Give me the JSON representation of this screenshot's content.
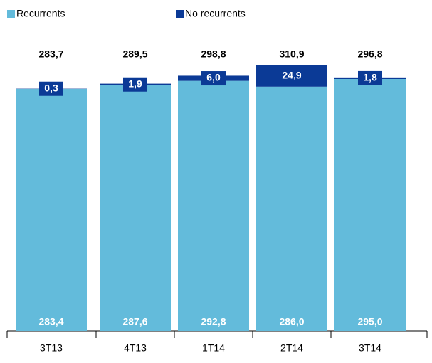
{
  "chart_data": {
    "type": "stacked_bar",
    "categories": [
      "3T13",
      "4T13",
      "1T14",
      "2T14",
      "3T14"
    ],
    "series": [
      {
        "name": "Recurrents",
        "color": "#63bbdb",
        "values": [
          283.4,
          287.6,
          292.8,
          286.0,
          295.0
        ],
        "value_labels": [
          "283,4",
          "287,6",
          "292,8",
          "286,0",
          "295,0"
        ]
      },
      {
        "name": "No recurrents",
        "color": "#0b3a96",
        "values": [
          0.3,
          1.9,
          6.0,
          24.9,
          1.8
        ],
        "value_labels": [
          "0,3",
          "1,9",
          "6,0",
          "24,9",
          "1,8"
        ]
      }
    ],
    "total_labels": [
      "283,7",
      "289,5",
      "298,8",
      "310,9",
      "296,8"
    ],
    "ylim": [
      12,
      330
    ]
  }
}
